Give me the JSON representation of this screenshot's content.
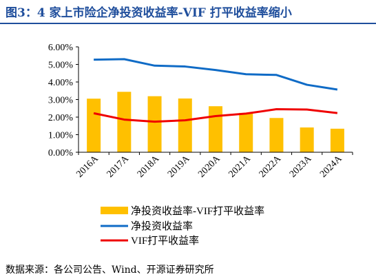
{
  "title": "图3：4 家上市险企净投资收益率-VIF 打平收益率缩小",
  "source": "数据来源：各公司公告、Wind、开源证券研究所",
  "colors": {
    "title": "#1f4e9c",
    "spread_bars": "#ffc000",
    "net_investment_yield": "#0f6bc6",
    "vif_breakeven_yield": "#ef0000",
    "axis": "#000000"
  },
  "chart_data": {
    "type": "bar",
    "categories": [
      "2016A",
      "2017A",
      "2018A",
      "2019A",
      "2020A",
      "2021A",
      "2022A",
      "2023A",
      "2024A"
    ],
    "ylim": [
      0,
      6
    ],
    "yticks": [
      "0.00%",
      "1.00%",
      "2.00%",
      "3.00%",
      "4.00%",
      "5.00%",
      "6.00%"
    ],
    "grid": false,
    "legend_position": "bottom",
    "series": [
      {
        "name": "净投资收益率-VIF打平收益率",
        "type": "bar",
        "values": [
          3.05,
          3.44,
          3.19,
          3.06,
          2.62,
          2.24,
          1.95,
          1.41,
          1.34
        ]
      },
      {
        "name": "净投资收益率",
        "type": "line",
        "values": [
          5.27,
          5.3,
          4.93,
          4.88,
          4.68,
          4.44,
          4.4,
          3.84,
          3.57
        ]
      },
      {
        "name": "VIF打平收益率",
        "type": "line",
        "values": [
          2.22,
          1.86,
          1.74,
          1.82,
          2.06,
          2.2,
          2.45,
          2.43,
          2.23
        ]
      }
    ]
  }
}
